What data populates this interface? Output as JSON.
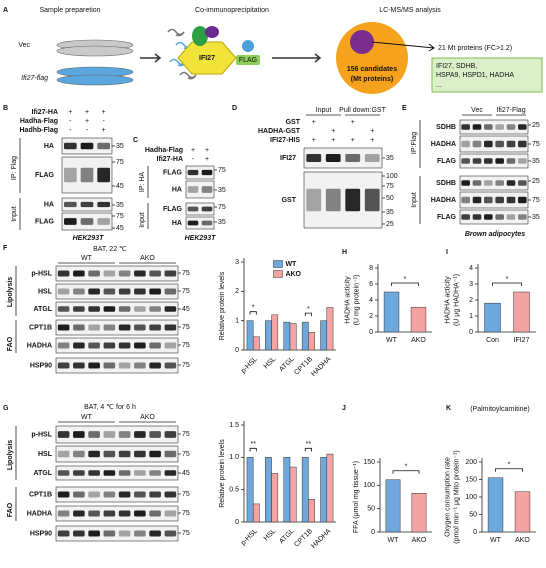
{
  "panels": {
    "A": {
      "label": "A",
      "steps": [
        "Sample preparetion",
        "Co-immunoprecipitation",
        "LC-MS/MS analysis"
      ],
      "groups": [
        "Vec",
        "Ifi27-flag"
      ],
      "bait": "IFI27",
      "tag": "FLAG",
      "candidates": [
        "156 candidates",
        "(Mt proteins)"
      ],
      "result": "21 Mt proteins (FC>1.2)",
      "hits": [
        "IFI27, SDHB,",
        "HSPA9, HSPD1, HADHA",
        "..."
      ]
    },
    "B": {
      "label": "B",
      "conditions": [
        "Ifi27-HA",
        "Hadha-Flag",
        "Hadhb-Flag"
      ],
      "signs": [
        [
          "+",
          "+",
          "+"
        ],
        [
          "-",
          "+",
          "-"
        ],
        [
          "-",
          "-",
          "+"
        ]
      ],
      "groups": [
        "IP: Flag",
        "Input"
      ],
      "blots": [
        "HA",
        "FLAG",
        "HA",
        "FLAG"
      ],
      "markers": [
        35,
        75,
        45,
        35,
        75,
        45
      ],
      "cell": "HEK293T"
    },
    "C": {
      "label": "C",
      "conditions": [
        "Hadha-Flag",
        "Ifi27-HA"
      ],
      "signs": [
        [
          "+",
          "+"
        ],
        [
          "-",
          "+"
        ]
      ],
      "groups": [
        "IP: HA",
        "Input"
      ],
      "blots": [
        "FLAG",
        "HA",
        "FLAG",
        "HA"
      ],
      "markers": [
        75,
        35,
        75,
        35
      ],
      "cell": "HEK293T"
    },
    "D": {
      "label": "D",
      "headers": [
        "Input",
        "Pull down:GST"
      ],
      "conditions": [
        "GST",
        "HADHA-GST",
        "IFI27-HIS"
      ],
      "signs": [
        [
          "+",
          "",
          "+",
          ""
        ],
        [
          "",
          "+",
          "",
          "+"
        ],
        [
          "+",
          "+",
          "+",
          "+"
        ]
      ],
      "blots": [
        "IFI27",
        "GST"
      ],
      "markers": [
        35,
        100,
        75,
        50,
        35,
        25
      ]
    },
    "E": {
      "label": "E",
      "headers": [
        "Vec",
        "Ifi27-Flag"
      ],
      "groups": [
        "IP:Flag",
        "Input"
      ],
      "blots": [
        "SDHB",
        "HADHA",
        "FLAG",
        "SDHB",
        "HADHA",
        "FLAG"
      ],
      "markers": [
        25,
        75,
        35,
        25,
        75,
        35
      ],
      "cell": "Brown adipocytes"
    },
    "F": {
      "label": "F",
      "title": "BAT, 22 ℃",
      "headers": [
        "WT",
        "AKO"
      ],
      "groups": [
        "Lipolysis",
        "FAO"
      ],
      "blots": [
        "p-HSL",
        "HSL",
        "ATGL",
        "CPT1B",
        "HADHA",
        "HSP90"
      ],
      "markers": [
        75,
        75,
        45,
        75,
        75,
        75
      ]
    },
    "G": {
      "label": "G",
      "title": "BAT, 4 ℃ for 6 h",
      "headers": [
        "WT",
        "AKO"
      ],
      "groups": [
        "Lipolysis",
        "FAO"
      ],
      "blots": [
        "p-HSL",
        "HSL",
        "ATGL",
        "CPT1B",
        "HADHA",
        "HSP90"
      ],
      "markers": [
        75,
        75,
        45,
        75,
        75,
        75
      ]
    }
  },
  "chart_data": [
    {
      "type": "bar",
      "ylabel": [
        "Relative protein levels"
      ],
      "categories": [
        "p-HSL",
        "HSL",
        "ATGL",
        "CPT1B",
        "HADHA"
      ],
      "series": [
        {
          "name": "WT",
          "color": "#6fa8dc",
          "values": [
            1.0,
            1.0,
            0.95,
            0.95,
            1.0
          ]
        },
        {
          "name": "AKO",
          "color": "#f4a3a3",
          "values": [
            0.45,
            1.2,
            0.9,
            0.6,
            1.45
          ]
        }
      ],
      "ylim": [
        0,
        3
      ],
      "yticks": [
        0,
        1,
        2,
        3
      ],
      "legend": "top",
      "annotations": [
        {
          "text": "*",
          "category": "p-HSL"
        },
        {
          "text": "*",
          "category": "CPT1B"
        }
      ]
    },
    {
      "type": "bar",
      "ylabel": [
        "Relative protein levels"
      ],
      "categories": [
        "p-HSL",
        "HSL",
        "ATGL",
        "CPT1B",
        "HADHA"
      ],
      "series": [
        {
          "name": "WT",
          "color": "#6fa8dc",
          "values": [
            1.0,
            1.0,
            1.0,
            1.0,
            1.0
          ]
        },
        {
          "name": "AKO",
          "color": "#f4a3a3",
          "values": [
            0.28,
            0.75,
            0.85,
            0.35,
            1.05
          ]
        }
      ],
      "ylim": [
        0,
        1.5
      ],
      "yticks": [
        0,
        0.5,
        {
          "value": 1,
          "label": "1.0"
        },
        1.5
      ],
      "annotations": [
        {
          "text": "**",
          "category": "p-HSL"
        },
        {
          "text": "**",
          "category": "CPT1B"
        }
      ]
    },
    {
      "type": "bar",
      "panel": "H",
      "ylabel": [
        "HADHA acticity",
        "(U mg protein⁻¹)"
      ],
      "categories": [
        "WT",
        "AKO"
      ],
      "values": [
        5.0,
        3.1
      ],
      "colors": [
        "#6fa8dc",
        "#f4a3a3"
      ],
      "ylim": [
        0,
        8
      ],
      "yticks": [
        0,
        2,
        4,
        6,
        8
      ],
      "annotations": [
        {
          "text": "*"
        }
      ]
    },
    {
      "type": "bar",
      "panel": "I",
      "ylabel": [
        "HADHA acticity",
        "(U μg HADHA⁻¹)"
      ],
      "categories": [
        "Con",
        "IFI27"
      ],
      "values": [
        1.8,
        2.5
      ],
      "colors": [
        "#6fa8dc",
        "#f4a3a3"
      ],
      "ylim": [
        0,
        4
      ],
      "yticks": [
        0,
        1,
        2,
        3,
        4
      ],
      "annotations": [
        {
          "text": "*"
        }
      ]
    },
    {
      "type": "bar",
      "panel": "J",
      "ylabel": [
        "FFA (μmol mg tissue⁻¹)"
      ],
      "categories": [
        "WT",
        "AKO"
      ],
      "values": [
        112,
        83
      ],
      "colors": [
        "#6fa8dc",
        "#f4a3a3"
      ],
      "ylim": [
        0,
        150
      ],
      "yticks": [
        0,
        50,
        100,
        150
      ],
      "annotations": [
        {
          "text": "*"
        }
      ]
    },
    {
      "type": "bar",
      "panel": "K",
      "title": "(Palmitoylcarnitine)",
      "ylabel": [
        "Oxygen consumption rate",
        "(pmol min⁻¹ μg Mito protein⁻¹)"
      ],
      "categories": [
        "WT",
        "AKO"
      ],
      "values": [
        155,
        115
      ],
      "colors": [
        "#6fa8dc",
        "#f4a3a3"
      ],
      "ylim": [
        0,
        200
      ],
      "yticks": [
        0,
        50,
        100,
        150,
        200
      ],
      "annotations": [
        {
          "text": "*"
        }
      ]
    }
  ]
}
